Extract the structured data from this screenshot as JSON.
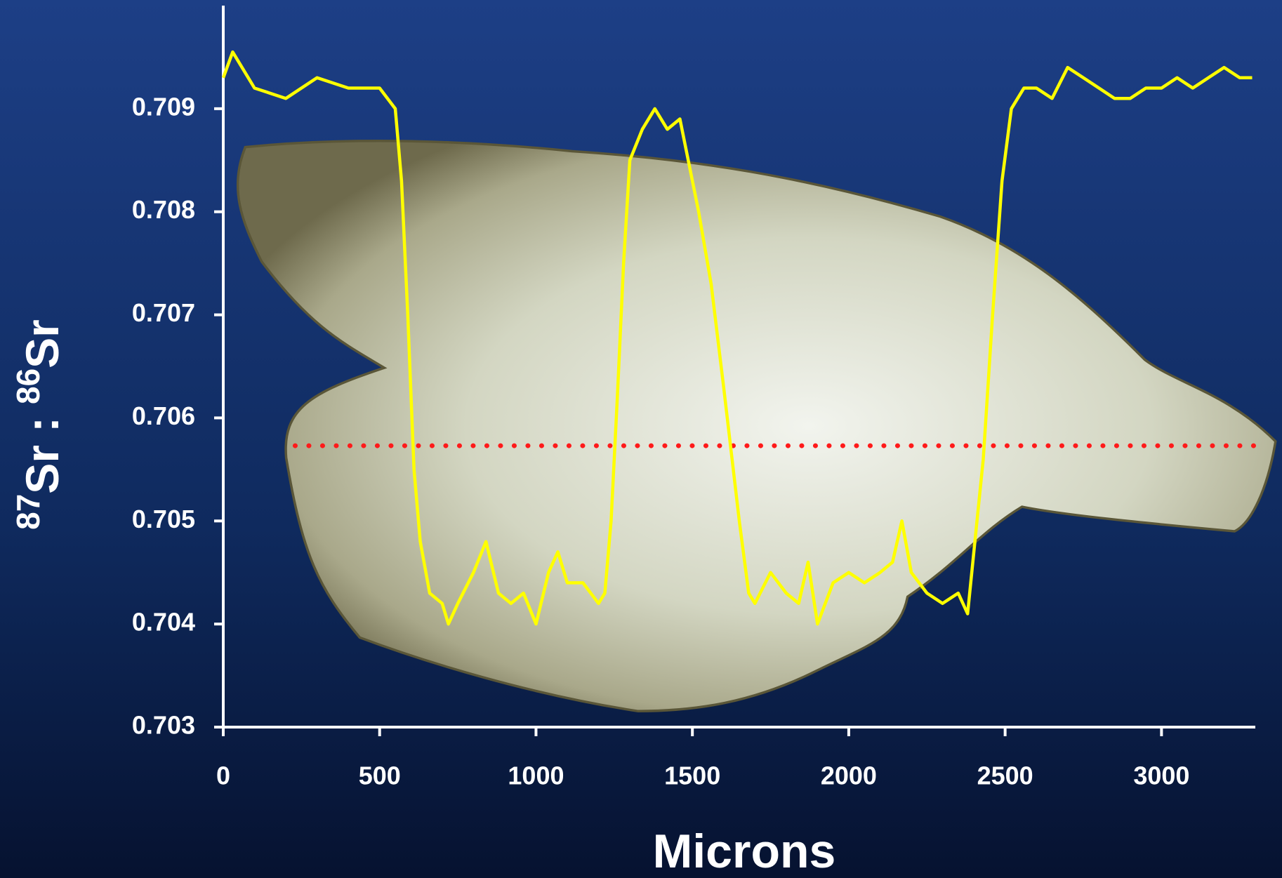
{
  "chart_data": {
    "type": "line",
    "xlabel": "Microns",
    "ylabel": {
      "mass1": "87",
      "element1": "Sr",
      "separator": ":",
      "mass2": "86",
      "element2": "Sr"
    },
    "xlim": [
      0,
      3300
    ],
    "ylim": [
      0.703,
      0.71
    ],
    "xticks": [
      0,
      500,
      1000,
      1500,
      2000,
      2500,
      3000
    ],
    "yticks": [
      0.703,
      0.704,
      0.705,
      0.706,
      0.707,
      0.708,
      0.709
    ],
    "series": [
      {
        "color": "#ffff00",
        "x": [
          0,
          30,
          100,
          200,
          300,
          400,
          500,
          550,
          570,
          590,
          610,
          630,
          660,
          700,
          720,
          750,
          800,
          840,
          880,
          920,
          960,
          1000,
          1040,
          1070,
          1100,
          1150,
          1200,
          1220,
          1240,
          1260,
          1280,
          1300,
          1340,
          1380,
          1420,
          1460,
          1480,
          1520,
          1560,
          1600,
          1650,
          1680,
          1700,
          1750,
          1800,
          1840,
          1870,
          1900,
          1950,
          2000,
          2050,
          2100,
          2140,
          2170,
          2200,
          2250,
          2300,
          2350,
          2380,
          2400,
          2430,
          2460,
          2490,
          2520,
          2560,
          2600,
          2650,
          2700,
          2750,
          2800,
          2850,
          2900,
          2950,
          3000,
          3050,
          3100,
          3150,
          3200,
          3250,
          3290
        ],
        "values": [
          0.7093,
          0.70955,
          0.7092,
          0.7091,
          0.7093,
          0.7092,
          0.7092,
          0.709,
          0.7083,
          0.707,
          0.7055,
          0.7048,
          0.7043,
          0.7042,
          0.704,
          0.7042,
          0.7045,
          0.7048,
          0.7043,
          0.7042,
          0.7043,
          0.704,
          0.7045,
          0.7047,
          0.7044,
          0.7044,
          0.7042,
          0.7043,
          0.705,
          0.7062,
          0.7075,
          0.7085,
          0.7088,
          0.709,
          0.7088,
          0.7089,
          0.7086,
          0.708,
          0.7073,
          0.7063,
          0.705,
          0.7043,
          0.7042,
          0.7045,
          0.7043,
          0.7042,
          0.7046,
          0.704,
          0.7044,
          0.7045,
          0.7044,
          0.7045,
          0.7046,
          0.705,
          0.7045,
          0.7043,
          0.7042,
          0.7043,
          0.7041,
          0.7047,
          0.7056,
          0.707,
          0.7083,
          0.709,
          0.7092,
          0.7092,
          0.7091,
          0.7094,
          0.7093,
          0.7092,
          0.7091,
          0.7091,
          0.7092,
          0.7092,
          0.7093,
          0.7092,
          0.7093,
          0.7094,
          0.7093,
          0.7093
        ]
      }
    ],
    "reference_line": {
      "value": 0.70573,
      "xstart": 230,
      "xend": 3310,
      "color": "#ff1a1a",
      "style": "dotted"
    }
  }
}
